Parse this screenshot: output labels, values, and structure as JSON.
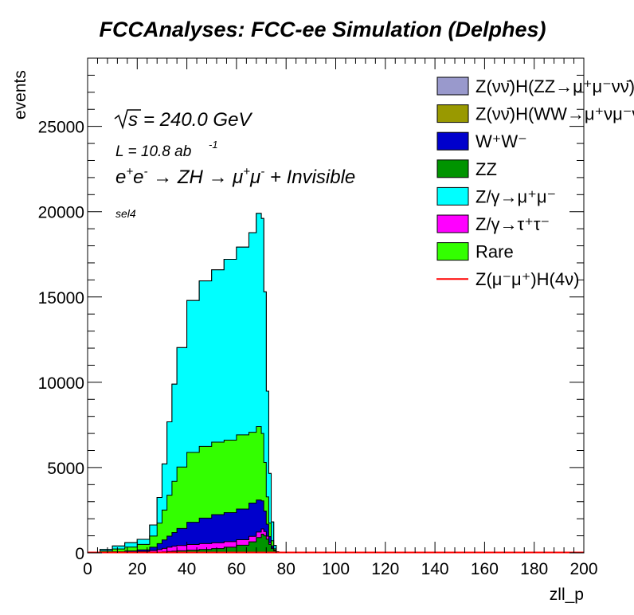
{
  "chart_data": {
    "type": "area",
    "style": "stacked-histogram",
    "title": "FCCAnalyses: FCC-ee Simulation (Delphes)",
    "xlabel": "zll_p",
    "ylabel": "events",
    "xlim": [
      0,
      200
    ],
    "ylim": [
      0,
      29000
    ],
    "x_ticks": [
      0,
      20,
      40,
      60,
      80,
      100,
      120,
      140,
      160,
      180,
      200
    ],
    "y_ticks": [
      0,
      5000,
      10000,
      15000,
      20000,
      25000
    ],
    "x_tick_labels": [
      "0",
      "20",
      "40",
      "60",
      "80",
      "100",
      "120",
      "140",
      "160",
      "180",
      "200"
    ],
    "y_tick_labels": [
      "0",
      "5000",
      "10000",
      "15000",
      "20000",
      "25000"
    ],
    "grid": false,
    "legend_position": "top-right",
    "annotations": {
      "sqrt_s": "= 240.0 GeV",
      "lumi": "L = 10.8 ab",
      "lumi_exp": "-1",
      "process": "e",
      "selection": "sel4"
    },
    "x": [
      0,
      5,
      10,
      15,
      20,
      25,
      28,
      30,
      32,
      34,
      36,
      40,
      45,
      50,
      55,
      60,
      65,
      68,
      70,
      71,
      72,
      73,
      74,
      75,
      76,
      77,
      80,
      100,
      150,
      200
    ],
    "series": [
      {
        "name": "ZZ",
        "color": "#009400",
        "values": [
          0,
          5,
          10,
          18,
          25,
          35,
          45,
          60,
          80,
          100,
          120,
          160,
          200,
          250,
          330,
          450,
          650,
          900,
          1100,
          1000,
          800,
          500,
          250,
          120,
          40,
          0,
          0,
          0,
          0,
          0
        ]
      },
      {
        "name": "Z/γ→τ⁺τ⁻",
        "color": "#ff00ff",
        "values": [
          0,
          5,
          15,
          30,
          50,
          100,
          150,
          200,
          250,
          290,
          310,
          330,
          340,
          340,
          330,
          320,
          320,
          320,
          300,
          250,
          180,
          100,
          40,
          10,
          0,
          0,
          0,
          0,
          0,
          0
        ]
      },
      {
        "name": "W⁺W⁻",
        "color": "#0000cc",
        "values": [
          0,
          20,
          40,
          60,
          100,
          200,
          350,
          500,
          650,
          800,
          1000,
          1300,
          1500,
          1650,
          1700,
          1800,
          1950,
          1880,
          1650,
          1200,
          700,
          350,
          120,
          30,
          0,
          0,
          0,
          0,
          0,
          0
        ]
      },
      {
        "name": "Rare",
        "color": "#33ff00",
        "values": [
          0,
          80,
          160,
          230,
          320,
          650,
          1200,
          1750,
          2400,
          3000,
          3600,
          4100,
          4200,
          4250,
          4250,
          4350,
          4150,
          4300,
          3950,
          2850,
          1600,
          800,
          300,
          80,
          10,
          0,
          0,
          0,
          0,
          0
        ]
      },
      {
        "name": "Z/γ→μ⁺μ⁻",
        "color": "#00ffff",
        "values": [
          0,
          90,
          175,
          260,
          300,
          650,
          1500,
          2700,
          4300,
          5700,
          7000,
          8900,
          9700,
          10100,
          10600,
          11000,
          11700,
          12500,
          12600,
          10000,
          6200,
          2900,
          1100,
          200,
          20,
          0,
          0,
          0,
          0,
          0
        ]
      },
      {
        "name": "Z(νν̄)H(WW→μ⁺νμ⁻ν̄)",
        "color": "#999900",
        "values": [
          0,
          0,
          0,
          0,
          0,
          0,
          0,
          0,
          0,
          0,
          0,
          0,
          0,
          0,
          0,
          0,
          0,
          0,
          0,
          0,
          0,
          0,
          0,
          0,
          0,
          0,
          0,
          0,
          0,
          0
        ]
      },
      {
        "name": "Z(νν̄)H(ZZ→μ⁺μ⁻νν̄)",
        "color": "#9999cc",
        "values": [
          0,
          0,
          0,
          0,
          0,
          0,
          0,
          0,
          0,
          0,
          0,
          0,
          0,
          0,
          0,
          0,
          0,
          0,
          0,
          0,
          0,
          0,
          0,
          0,
          0,
          0,
          0,
          0,
          0,
          0
        ]
      }
    ],
    "signal": {
      "name": "Z(μ⁻μ⁺)H(4ν)",
      "color": "#ff0000",
      "values": [
        0,
        0,
        0,
        0,
        0,
        0,
        0,
        0,
        0,
        0,
        0,
        0,
        0,
        0,
        0,
        0,
        0,
        0,
        0,
        0,
        0,
        0,
        0,
        0,
        0,
        0,
        0,
        0,
        0,
        0
      ]
    },
    "legend_order": [
      {
        "label": "Z(νν̄)H(ZZ→μ⁺μ⁻νν̄)",
        "color": "#9999cc",
        "kind": "box"
      },
      {
        "label": "Z(νν̄)H(WW→μ⁺νμ⁻ν̄)",
        "color": "#999900",
        "kind": "box"
      },
      {
        "label": "W⁺W⁻",
        "color": "#0000cc",
        "kind": "box"
      },
      {
        "label": "ZZ",
        "color": "#009400",
        "kind": "box"
      },
      {
        "label": "Z/γ→μ⁺μ⁻",
        "color": "#00ffff",
        "kind": "box"
      },
      {
        "label": "Z/γ→τ⁺τ⁻",
        "color": "#ff00ff",
        "kind": "box"
      },
      {
        "label": "Rare",
        "color": "#33ff00",
        "kind": "box"
      },
      {
        "label": "Z(μ⁻μ⁺)H(4ν)",
        "color": "#ff0000",
        "kind": "line"
      }
    ]
  }
}
